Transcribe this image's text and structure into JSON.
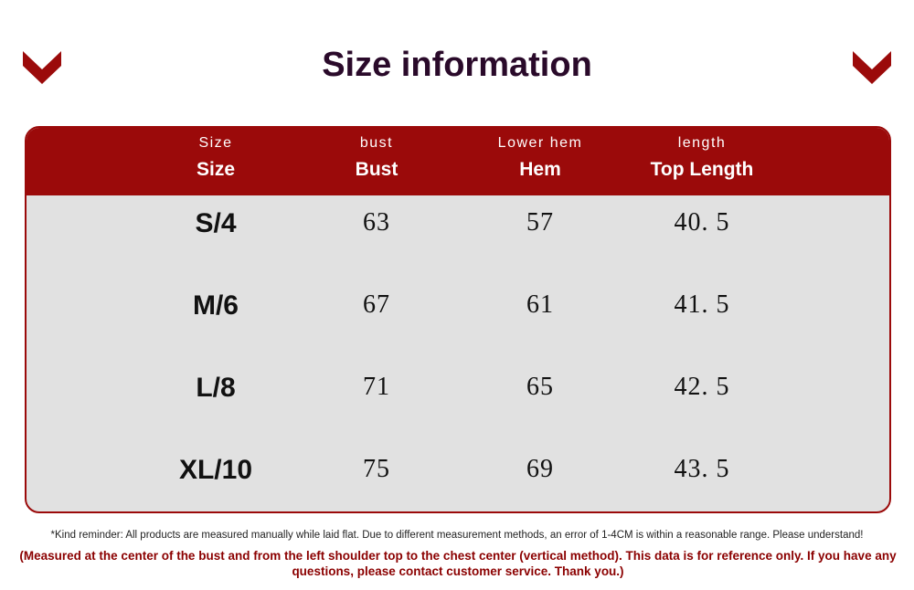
{
  "header": {
    "title": "Size information"
  },
  "table": {
    "columns": [
      {
        "sub": "Size",
        "label": "Size"
      },
      {
        "sub": "bust",
        "label": "Bust"
      },
      {
        "sub": "Lower hem",
        "label": "Hem"
      },
      {
        "sub": "length",
        "label": "Top Length"
      }
    ],
    "rows": [
      [
        "S/4",
        "63",
        "57",
        "40. 5"
      ],
      [
        "M/6",
        "67",
        "61",
        "41. 5"
      ],
      [
        "L/8",
        "71",
        "65",
        "42. 5"
      ],
      [
        "XL/10",
        "75",
        "69",
        "43. 5"
      ]
    ]
  },
  "footer": {
    "note": "*Kind reminder: All products are measured manually while laid flat. Due to different measurement methods, an error of 1-4CM is within a reasonable range. Please understand!",
    "disclaimer": "(Measured at the center of the bust and from the left shoulder top to the chest center (vertical method). This data is for reference only. If you have any questions, please contact customer service. Thank you.)"
  }
}
